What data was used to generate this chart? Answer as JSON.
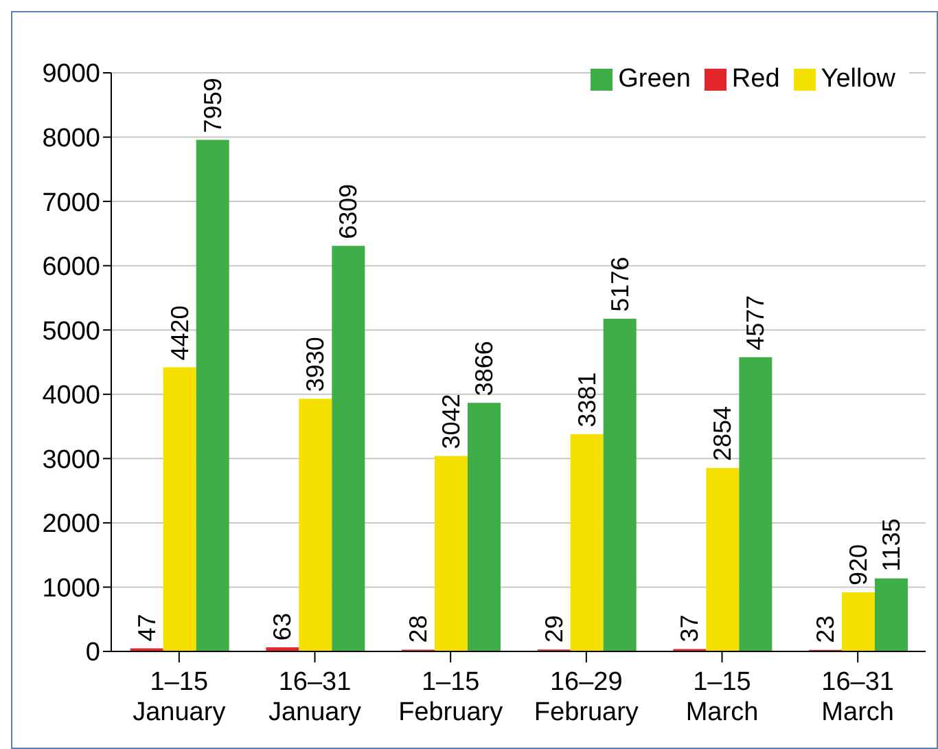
{
  "chart_data": {
    "type": "bar",
    "categories": [
      "1–15\nJanuary",
      "16–31\nJanuary",
      "1–15\nFebruary",
      "16–29\nFebruary",
      "1–15\nMarch",
      "16–31\nMarch"
    ],
    "series": [
      {
        "name": "Red",
        "color": "#e3262b",
        "values": [
          47,
          63,
          28,
          29,
          37,
          23
        ]
      },
      {
        "name": "Yellow",
        "color": "#f4e100",
        "values": [
          4420,
          3930,
          3042,
          3381,
          2854,
          920
        ]
      },
      {
        "name": "Green",
        "color": "#3fae49",
        "values": [
          7959,
          6309,
          3866,
          5176,
          4577,
          1135
        ]
      }
    ],
    "ylim": [
      0,
      9000
    ],
    "yticks": [
      0,
      1000,
      2000,
      3000,
      4000,
      5000,
      6000,
      7000,
      8000,
      9000
    ],
    "grid": "y",
    "legend": "top right",
    "data_labels": true
  }
}
